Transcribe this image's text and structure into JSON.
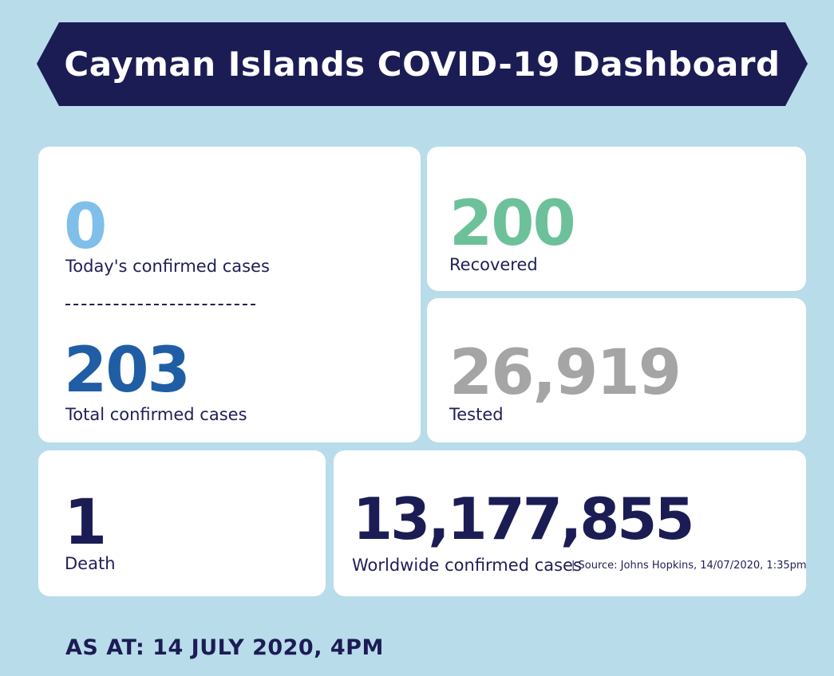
{
  "banner": {
    "title": "Cayman Islands COVID-19 Dashboard"
  },
  "cards": {
    "today": {
      "value": "0",
      "label": "Today's confirmed cases"
    },
    "total": {
      "value": "203",
      "label": "Total confirmed cases"
    },
    "recovered": {
      "value": "200",
      "label": "Recovered"
    },
    "tested": {
      "value": "26,919",
      "label": "Tested"
    },
    "death": {
      "value": "1",
      "label": "Death"
    },
    "worldwide": {
      "value": "13,177,855",
      "label": "Worldwide confirmed cases",
      "source": "| Source: Johns Hopkins, 14/07/2020, 1:35pm"
    }
  },
  "footer": {
    "as_at": "AS AT: 14 JULY 2020, 4PM"
  },
  "colors": {
    "background": "#b9dcea",
    "banner": "#1c1c55",
    "today": "#7fbfea",
    "total": "#1f5ea4",
    "recovered": "#6cc19a",
    "tested": "#a5a5a5",
    "navy": "#1c1c55"
  }
}
